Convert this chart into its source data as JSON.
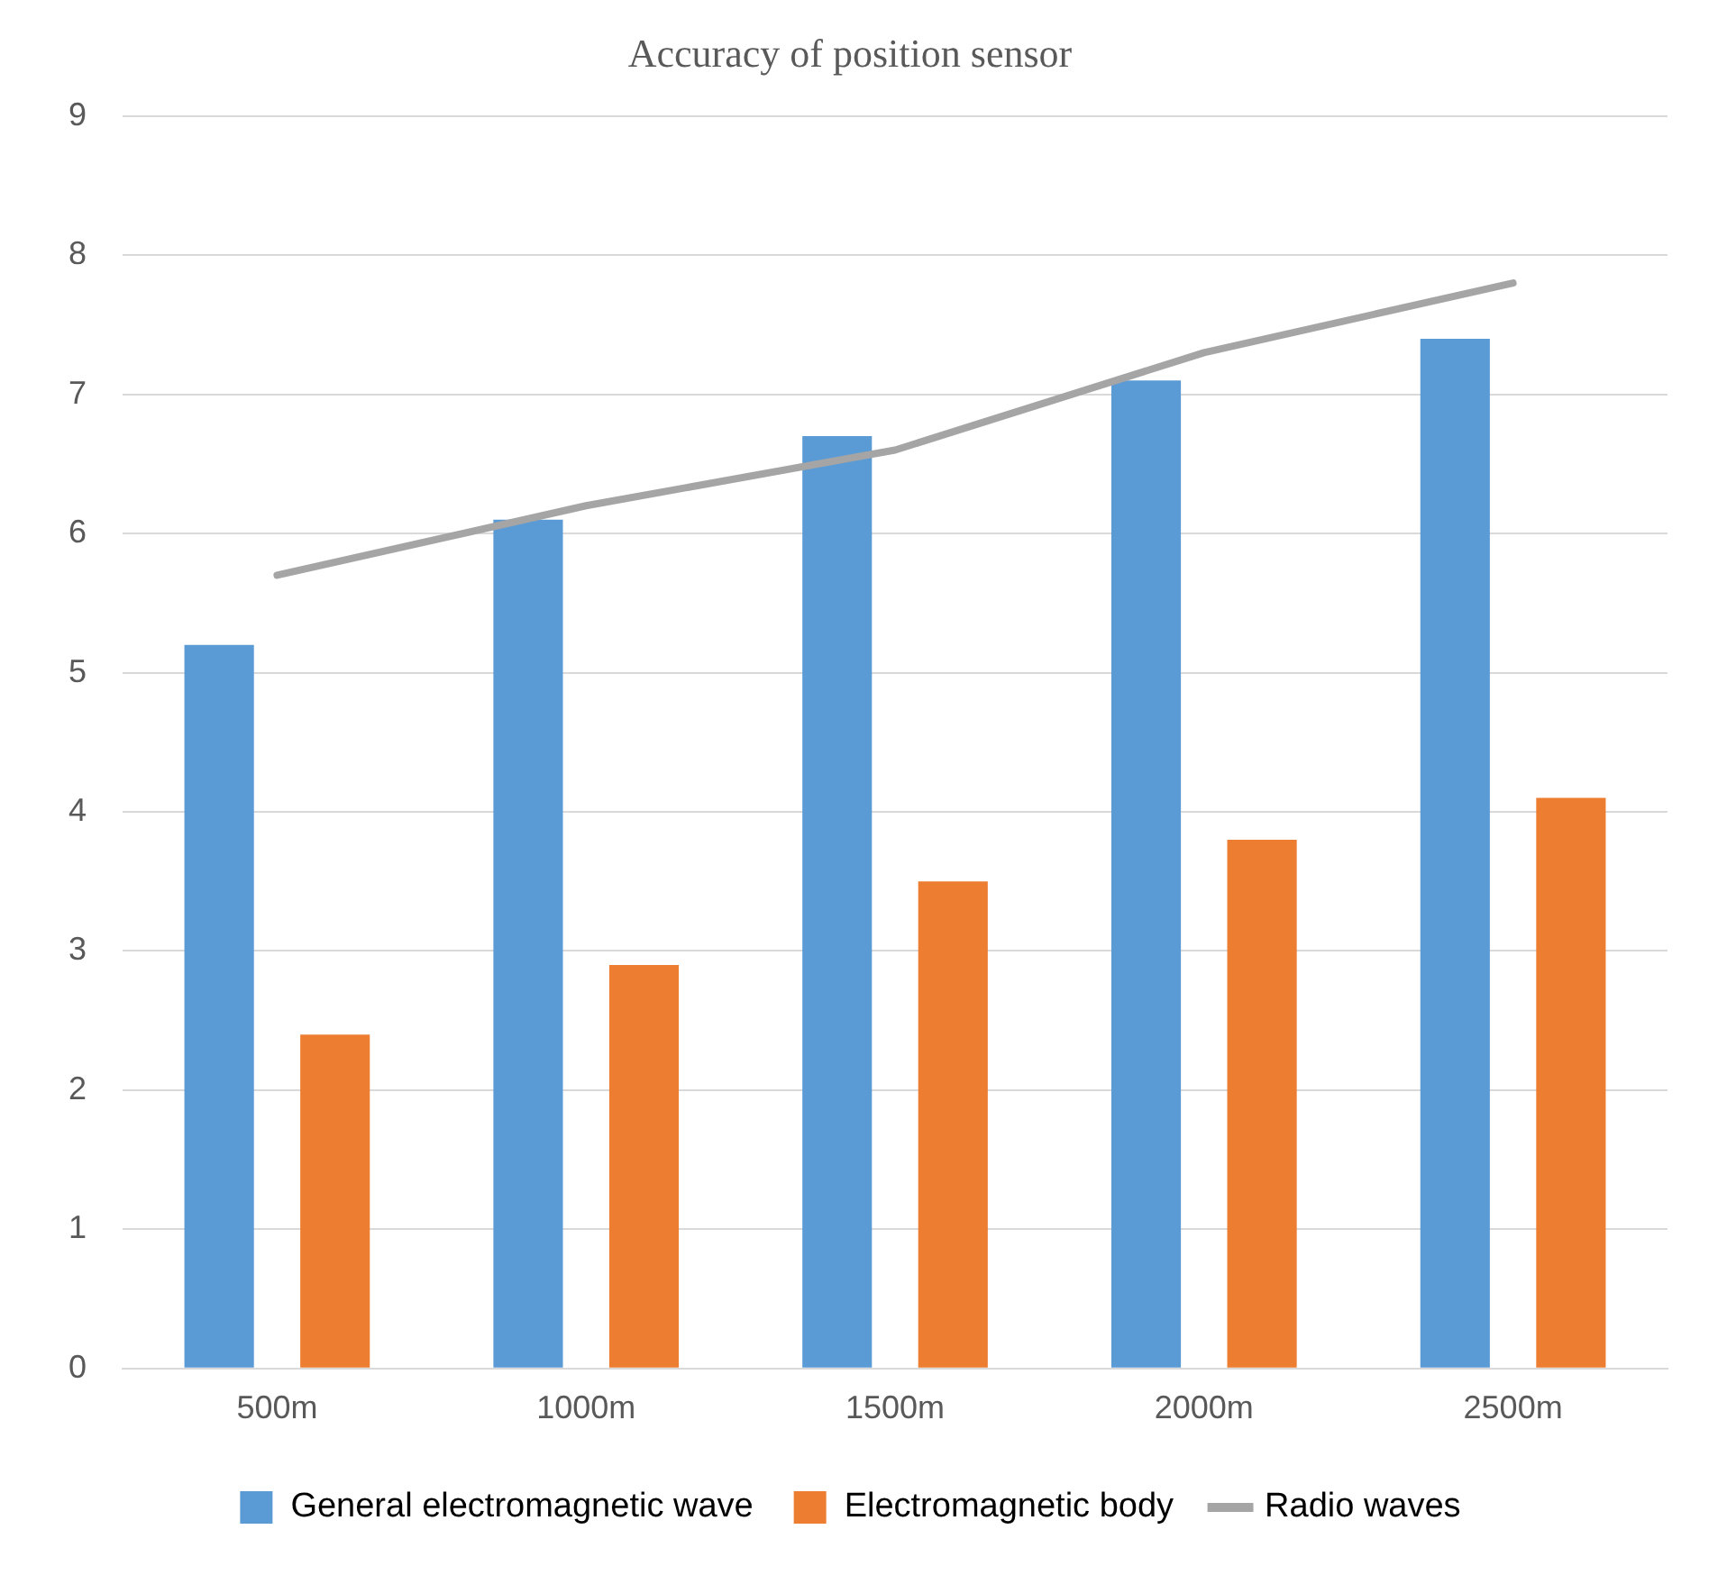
{
  "chart_data": {
    "type": "bar",
    "title": "Accuracy of position sensor",
    "categories": [
      "500m",
      "1000m",
      "1500m",
      "2000m",
      "2500m"
    ],
    "series": [
      {
        "name": "General electromagnetic wave",
        "color": "#5b9bd5",
        "values": [
          5.2,
          6.1,
          6.7,
          7.1,
          7.4
        ]
      },
      {
        "name": "Electromagnetic body",
        "color": "#ed7d31",
        "values": [
          2.4,
          2.9,
          3.5,
          3.8,
          4.1
        ]
      },
      {
        "name": "Radio waves",
        "type": "line",
        "color": "#a5a5a5",
        "values": [
          5.7,
          6.2,
          6.6,
          7.3,
          7.8
        ],
        "marker": "none"
      }
    ],
    "ylim": [
      0,
      9
    ],
    "yticks": [
      0,
      1,
      2,
      3,
      4,
      5,
      6,
      7,
      8,
      9
    ],
    "grid": "y",
    "legend": "bottom"
  }
}
